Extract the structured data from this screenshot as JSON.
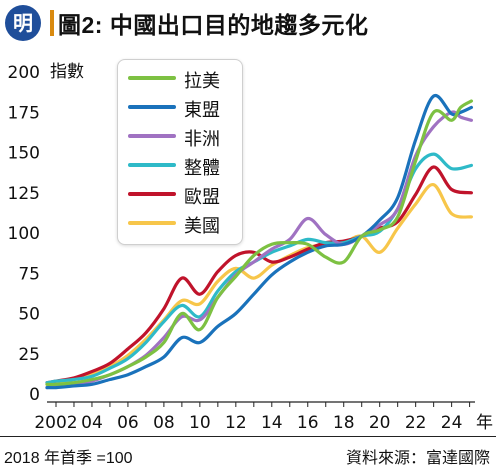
{
  "header": {
    "logo_char": "明",
    "title": "圖2: 中國出口目的地趨多元化"
  },
  "footer": {
    "note": "2018 年首季 =100",
    "source": "資料來源：富達國際"
  },
  "colors": {
    "logo_bg": "#1f4e9a",
    "title_bar": "#d98a10",
    "latam": "#7dc142",
    "asean": "#1a72bb",
    "africa": "#a072c2",
    "aus": "#2ebac8",
    "eu": "#c0132b",
    "us": "#f7c64a"
  },
  "chart_data": {
    "type": "line",
    "ylabel": "指數",
    "xlabel": "年",
    "ylim": [
      0,
      200
    ],
    "yticks": [
      0,
      25,
      50,
      75,
      100,
      125,
      150,
      175,
      200
    ],
    "xlim": [
      2001.5,
      2025.3
    ],
    "xticks": [
      {
        "x": 2002,
        "label": "2002"
      },
      {
        "x": 2004,
        "label": "04"
      },
      {
        "x": 2006,
        "label": "06"
      },
      {
        "x": 2008,
        "label": "08"
      },
      {
        "x": 2010,
        "label": "10"
      },
      {
        "x": 2012,
        "label": "12"
      },
      {
        "x": 2014,
        "label": "14"
      },
      {
        "x": 2016,
        "label": "16"
      },
      {
        "x": 2018,
        "label": "18"
      },
      {
        "x": 2020,
        "label": "20"
      },
      {
        "x": 2022,
        "label": "22"
      },
      {
        "x": 2024,
        "label": "24"
      }
    ],
    "legend_position": "top-left",
    "grid": false,
    "series": [
      {
        "name": "拉美",
        "key": "latam",
        "points": [
          [
            2001.5,
            6
          ],
          [
            2002,
            6
          ],
          [
            2003,
            7
          ],
          [
            2004,
            9
          ],
          [
            2005,
            12
          ],
          [
            2006,
            17
          ],
          [
            2007,
            23
          ],
          [
            2008,
            32
          ],
          [
            2009,
            50
          ],
          [
            2010,
            40
          ],
          [
            2011,
            60
          ],
          [
            2012,
            73
          ],
          [
            2013,
            86
          ],
          [
            2014,
            93
          ],
          [
            2015,
            94
          ],
          [
            2016,
            93
          ],
          [
            2017,
            85
          ],
          [
            2018,
            82
          ],
          [
            2019,
            98
          ],
          [
            2020,
            102
          ],
          [
            2021,
            110
          ],
          [
            2022,
            145
          ],
          [
            2023,
            175
          ],
          [
            2024,
            170
          ],
          [
            2024.5,
            178
          ],
          [
            2025.1,
            182
          ]
        ]
      },
      {
        "name": "東盟",
        "key": "asean",
        "points": [
          [
            2001.5,
            4
          ],
          [
            2002,
            4
          ],
          [
            2003,
            5
          ],
          [
            2004,
            6
          ],
          [
            2005,
            9
          ],
          [
            2006,
            12
          ],
          [
            2007,
            17
          ],
          [
            2008,
            23
          ],
          [
            2009,
            35
          ],
          [
            2010,
            32
          ],
          [
            2011,
            42
          ],
          [
            2012,
            50
          ],
          [
            2013,
            62
          ],
          [
            2014,
            74
          ],
          [
            2015,
            82
          ],
          [
            2016,
            88
          ],
          [
            2017,
            92
          ],
          [
            2018,
            93
          ],
          [
            2019,
            98
          ],
          [
            2020,
            108
          ],
          [
            2021,
            122
          ],
          [
            2022,
            158
          ],
          [
            2023,
            185
          ],
          [
            2024,
            174
          ],
          [
            2024.5,
            175
          ],
          [
            2025.1,
            178
          ]
        ]
      },
      {
        "name": "非洲",
        "key": "africa",
        "points": [
          [
            2001.5,
            4
          ],
          [
            2002,
            5
          ],
          [
            2003,
            6
          ],
          [
            2004,
            8
          ],
          [
            2005,
            12
          ],
          [
            2006,
            17
          ],
          [
            2007,
            24
          ],
          [
            2008,
            35
          ],
          [
            2009,
            48
          ],
          [
            2010,
            46
          ],
          [
            2011,
            60
          ],
          [
            2012,
            74
          ],
          [
            2013,
            82
          ],
          [
            2014,
            90
          ],
          [
            2015,
            96
          ],
          [
            2016,
            109
          ],
          [
            2017,
            99
          ],
          [
            2018,
            93
          ],
          [
            2019,
            98
          ],
          [
            2020,
            105
          ],
          [
            2021,
            115
          ],
          [
            2022,
            148
          ],
          [
            2023,
            166
          ],
          [
            2024,
            175
          ],
          [
            2024.5,
            172
          ],
          [
            2025.1,
            170
          ]
        ]
      },
      {
        "name": "整體",
        "key": "aus",
        "points": [
          [
            2001.5,
            7
          ],
          [
            2002,
            8
          ],
          [
            2003,
            9
          ],
          [
            2004,
            11
          ],
          [
            2005,
            16
          ],
          [
            2006,
            22
          ],
          [
            2007,
            32
          ],
          [
            2008,
            45
          ],
          [
            2009,
            55
          ],
          [
            2010,
            48
          ],
          [
            2011,
            64
          ],
          [
            2012,
            76
          ],
          [
            2013,
            82
          ],
          [
            2014,
            88
          ],
          [
            2015,
            92
          ],
          [
            2016,
            96
          ],
          [
            2017,
            94
          ],
          [
            2018,
            94
          ],
          [
            2019,
            98
          ],
          [
            2020,
            101
          ],
          [
            2021,
            115
          ],
          [
            2022,
            140
          ],
          [
            2023,
            149
          ],
          [
            2024,
            140
          ],
          [
            2025.1,
            142
          ]
        ]
      },
      {
        "name": "歐盟",
        "key": "eu",
        "points": [
          [
            2001.5,
            7
          ],
          [
            2002,
            8
          ],
          [
            2003,
            10
          ],
          [
            2004,
            14
          ],
          [
            2005,
            19
          ],
          [
            2006,
            28
          ],
          [
            2007,
            38
          ],
          [
            2008,
            53
          ],
          [
            2009,
            72
          ],
          [
            2010,
            62
          ],
          [
            2011,
            76
          ],
          [
            2012,
            86
          ],
          [
            2013,
            88
          ],
          [
            2014,
            82
          ],
          [
            2015,
            85
          ],
          [
            2016,
            90
          ],
          [
            2017,
            94
          ],
          [
            2018,
            95
          ],
          [
            2019,
            98
          ],
          [
            2020,
            103
          ],
          [
            2021,
            107
          ],
          [
            2022,
            124
          ],
          [
            2023,
            141
          ],
          [
            2024,
            127
          ],
          [
            2025.1,
            125
          ]
        ]
      },
      {
        "name": "美國",
        "key": "us",
        "points": [
          [
            2001.5,
            6
          ],
          [
            2002,
            7
          ],
          [
            2003,
            9
          ],
          [
            2004,
            12
          ],
          [
            2005,
            17
          ],
          [
            2006,
            24
          ],
          [
            2007,
            34
          ],
          [
            2008,
            46
          ],
          [
            2009,
            58
          ],
          [
            2010,
            56
          ],
          [
            2011,
            70
          ],
          [
            2012,
            78
          ],
          [
            2013,
            72
          ],
          [
            2014,
            80
          ],
          [
            2015,
            86
          ],
          [
            2016,
            91
          ],
          [
            2017,
            93
          ],
          [
            2018,
            94
          ],
          [
            2019,
            98
          ],
          [
            2020,
            88
          ],
          [
            2021,
            103
          ],
          [
            2022,
            118
          ],
          [
            2023,
            130
          ],
          [
            2024,
            112
          ],
          [
            2025.1,
            110
          ]
        ]
      }
    ]
  }
}
